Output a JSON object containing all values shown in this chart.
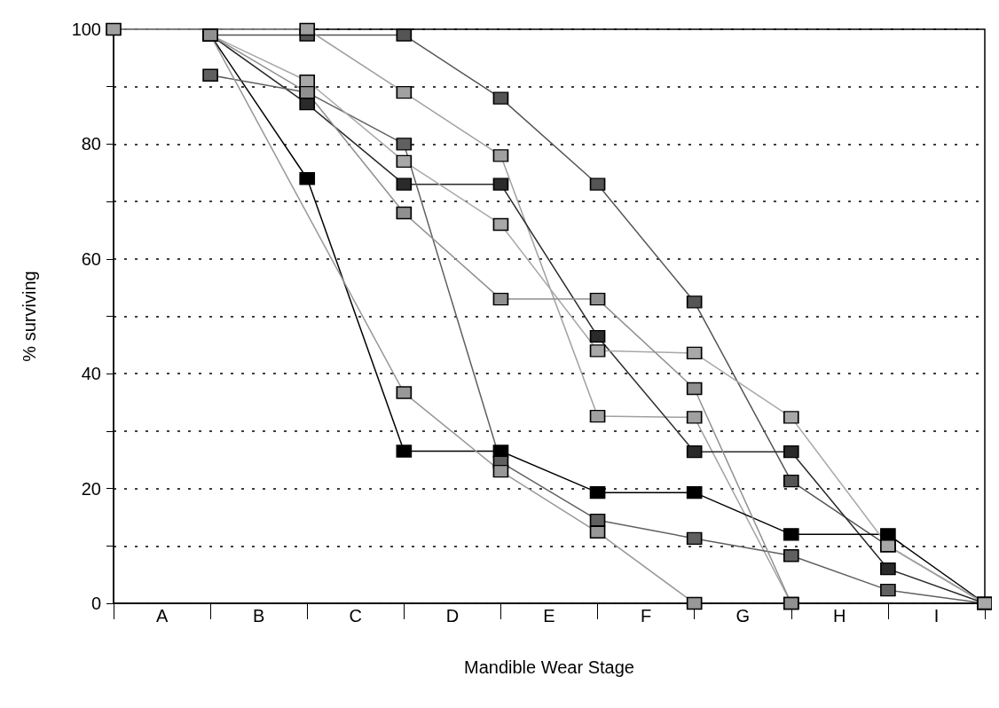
{
  "chart_data": {
    "type": "line",
    "xlabel": "Mandible Wear Stage",
    "ylabel": "% surviving",
    "categories": [
      null,
      "A",
      null,
      "B",
      null,
      "C",
      null,
      "D",
      null,
      "E",
      null,
      "F",
      null,
      "G",
      null,
      "H",
      null,
      "I",
      null
    ],
    "ylim": [
      0,
      100
    ],
    "yticks": [
      0,
      {
        "value": 10,
        "label": null
      },
      20,
      {
        "value": 30,
        "label": null
      },
      40,
      {
        "value": 50,
        "label": null
      },
      60,
      {
        "value": 70,
        "label": null
      },
      80,
      {
        "value": 90,
        "label": null
      },
      100
    ],
    "grid": "y",
    "marker": "square",
    "series": [
      {
        "color": "#555555",
        "values": [
          null,
          null,
          99,
          null,
          99,
          null,
          99,
          null,
          88,
          null,
          73,
          null,
          52.5,
          null,
          21.3,
          null,
          10,
          null,
          0
        ]
      },
      {
        "color": "#a0a0a0",
        "values": [
          100,
          null,
          null,
          null,
          100,
          null,
          89,
          null,
          78,
          null,
          32.6,
          null,
          32.4,
          null,
          0,
          null,
          null,
          null,
          null
        ]
      },
      {
        "color": "#2a2a2a",
        "values": [
          null,
          null,
          99,
          null,
          87,
          null,
          73,
          null,
          73,
          null,
          46.5,
          null,
          26.4,
          null,
          26.4,
          null,
          6,
          null,
          0
        ]
      },
      {
        "color": "#000000",
        "values": [
          null,
          null,
          99,
          null,
          74,
          null,
          26.5,
          null,
          26.5,
          null,
          19.3,
          null,
          19.3,
          null,
          12,
          null,
          12,
          null,
          0
        ]
      },
      {
        "color": "#606060",
        "values": [
          null,
          null,
          92,
          null,
          89,
          null,
          80,
          null,
          24.6,
          null,
          14.5,
          null,
          11.3,
          null,
          8.3,
          null,
          2.3,
          null,
          0
        ]
      },
      {
        "color": "#a8a8a8",
        "values": [
          null,
          null,
          99,
          null,
          91,
          null,
          77,
          null,
          66,
          null,
          44,
          null,
          43.6,
          null,
          32.4,
          null,
          10,
          null,
          0
        ]
      },
      {
        "color": "#989898",
        "values": [
          null,
          null,
          99,
          null,
          null,
          null,
          36.7,
          null,
          23,
          null,
          12.4,
          null,
          0,
          null,
          null,
          null,
          null,
          null,
          null
        ]
      },
      {
        "color": "#909090",
        "values": [
          null,
          null,
          99,
          null,
          89,
          null,
          68,
          null,
          53,
          null,
          53,
          null,
          37.4,
          null,
          0,
          null,
          null,
          null,
          null
        ]
      }
    ]
  }
}
